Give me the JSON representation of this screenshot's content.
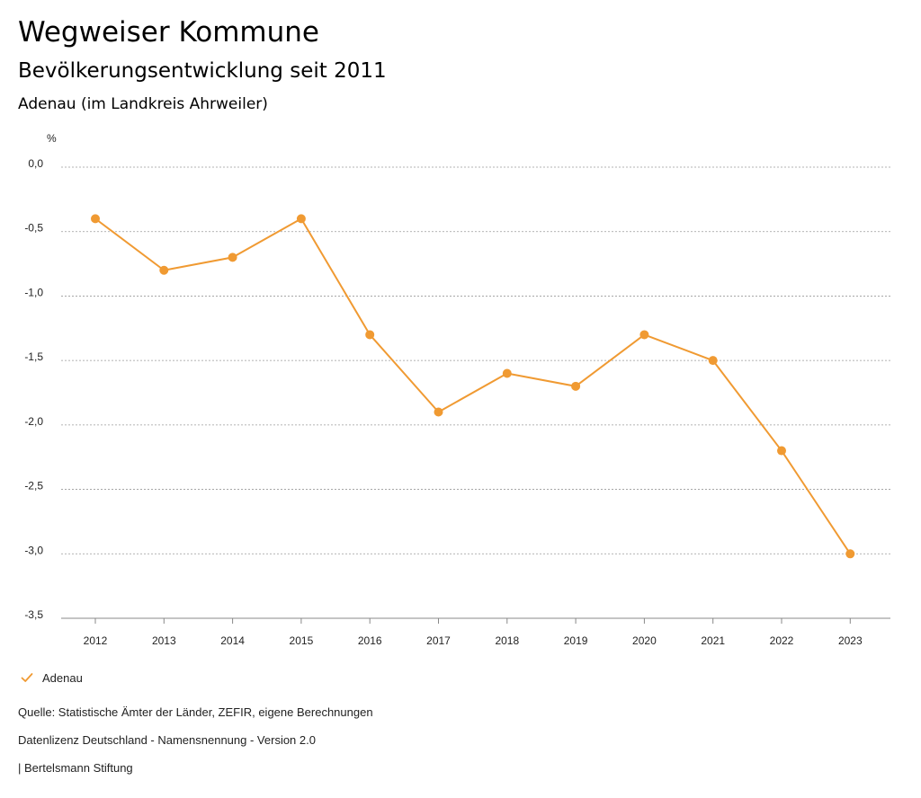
{
  "header": {
    "title": "Wegweiser Kommune",
    "subtitle": "Bevölkerungsentwicklung seit 2011",
    "region": "Adenau (im Landkreis Ahrweiler)"
  },
  "chart_data": {
    "type": "line",
    "title": "Bevölkerungsentwicklung seit 2011",
    "xlabel": "",
    "ylabel": "%",
    "x": [
      "2012",
      "2013",
      "2014",
      "2015",
      "2016",
      "2017",
      "2018",
      "2019",
      "2020",
      "2021",
      "2022",
      "2023"
    ],
    "series": [
      {
        "name": "Adenau",
        "values": [
          -0.4,
          -0.8,
          -0.7,
          -0.4,
          -1.3,
          -1.9,
          -1.6,
          -1.7,
          -1.3,
          -1.5,
          -2.2,
          -3.0
        ]
      }
    ],
    "ylim": [
      -3.5,
      0.0
    ],
    "yticks": [
      0.0,
      -0.5,
      -1.0,
      -1.5,
      -2.0,
      -2.5,
      -3.0,
      -3.5
    ],
    "ytick_labels": [
      "0,0",
      "-0,5",
      "-1,0",
      "-1,5",
      "-2,0",
      "-2,5",
      "-3,0",
      "-3,5"
    ],
    "grid": true,
    "legend": "bottom-left"
  },
  "colors": {
    "series": "#f09a32",
    "grid": "#9a9a9a",
    "axis": "#888888"
  },
  "legend": {
    "icon": "checkmark-icon",
    "label": "Adenau"
  },
  "footer": {
    "source": "Quelle: Statistische Ämter der Länder, ZEFIR, eigene Berechnungen",
    "license": "Datenlizenz Deutschland - Namensnennung - Version 2.0",
    "publisher": "| Bertelsmann Stiftung"
  }
}
